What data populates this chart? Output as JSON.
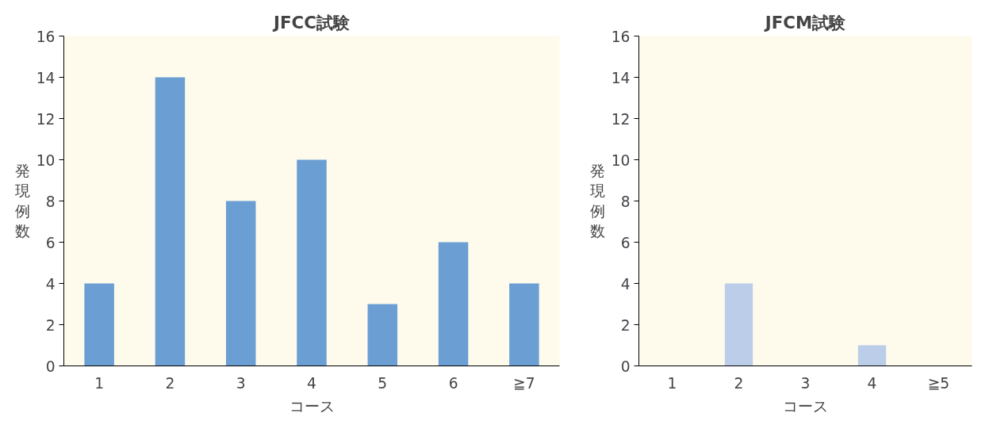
{
  "chart_data": [
    {
      "type": "bar",
      "title": "JFCC試験",
      "xlabel": "コース",
      "ylabel": "発現例数",
      "categories": [
        "1",
        "2",
        "3",
        "4",
        "5",
        "6",
        "≧7"
      ],
      "values": [
        4,
        14,
        8,
        10,
        3,
        6,
        4
      ],
      "color": "#6b9fd4",
      "ylim": [
        0,
        16
      ],
      "yticks": [
        0,
        2,
        4,
        6,
        8,
        10,
        12,
        14,
        16
      ],
      "grid": false
    },
    {
      "type": "bar",
      "title": "JFCM試験",
      "xlabel": "コース",
      "ylabel": "発現例数",
      "categories": [
        "1",
        "2",
        "3",
        "4",
        "≧5"
      ],
      "values": [
        0,
        4,
        0,
        1,
        0
      ],
      "color": "#bccde9",
      "ylim": [
        0,
        16
      ],
      "yticks": [
        0,
        2,
        4,
        6,
        8,
        10,
        12,
        14,
        16
      ],
      "grid": false
    }
  ]
}
